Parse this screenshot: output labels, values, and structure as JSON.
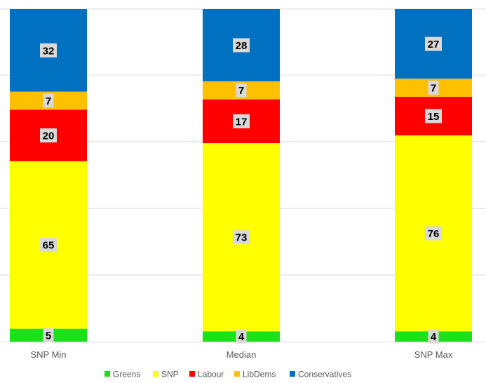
{
  "chart_data": {
    "type": "bar",
    "stacked": true,
    "categories": [
      "SNP Min",
      "Median",
      "SNP Max"
    ],
    "series": [
      {
        "name": "Greens",
        "values": [
          5,
          4,
          4
        ],
        "color": "#1be11b"
      },
      {
        "name": "SNP",
        "values": [
          65,
          73,
          76
        ],
        "color": "#ffff00"
      },
      {
        "name": "Labour",
        "values": [
          20,
          17,
          15
        ],
        "color": "#ff0000"
      },
      {
        "name": "LibDems",
        "values": [
          7,
          7,
          7
        ],
        "color": "#ffc000"
      },
      {
        "name": "Conservatives",
        "values": [
          32,
          28,
          27
        ],
        "color": "#0070c0"
      }
    ],
    "ylim": [
      0,
      129
    ],
    "grid": true,
    "legend_position": "bottom",
    "label_background": "#d9d9d9"
  }
}
